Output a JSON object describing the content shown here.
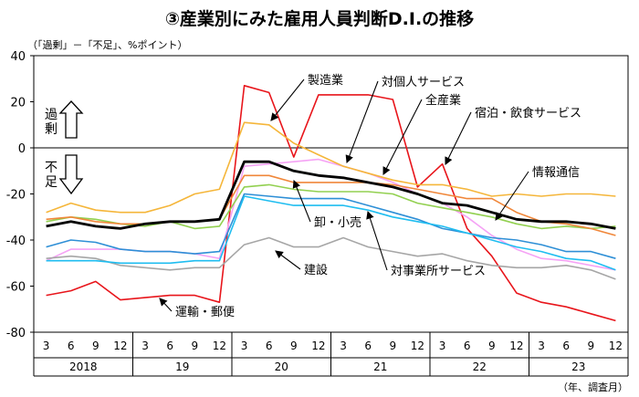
{
  "chart_data": {
    "type": "line",
    "title": "③産業別にみた雇用人員判断D.I.の推移",
    "unit_note": "（「過剰」－「不足」、%ポイント）",
    "ylim": [
      -80,
      40
    ],
    "yticks": [
      40,
      20,
      0,
      -20,
      -40,
      -60,
      -80
    ],
    "xlabel": "（年、調査月）",
    "months": [
      "3",
      "6",
      "9",
      "12",
      "3",
      "6",
      "9",
      "12",
      "3",
      "6",
      "9",
      "12",
      "3",
      "6",
      "9",
      "12",
      "3",
      "6",
      "9",
      "12",
      "3",
      "6",
      "9",
      "12"
    ],
    "years": [
      "2018",
      "19",
      "20",
      "21",
      "22",
      "23"
    ],
    "excess_label": "過剰",
    "shortage_label": "不足",
    "series": [
      {
        "name": "運輸・郵便",
        "color": "#e8151b",
        "width": 1.6,
        "values": [
          -64,
          -62,
          -58,
          -66,
          -65,
          -64,
          -64,
          -67,
          27,
          24,
          -4,
          23,
          23,
          23,
          21,
          -17,
          -7,
          -35,
          -47,
          -63,
          -67,
          -69,
          -72,
          -75
        ]
      },
      {
        "name": "対個人サービス",
        "color": "#f5a3f5",
        "width": 1.6,
        "values": [
          -49,
          -44,
          -44,
          -44,
          -45,
          -45,
          -46,
          -48,
          -8,
          -7,
          -6,
          -5,
          -8,
          -11,
          -15,
          -20,
          -24,
          -30,
          -38,
          -44,
          -48,
          -49,
          -51,
          -53
        ]
      },
      {
        "name": "建設",
        "color": "#a6a6a6",
        "width": 1.6,
        "values": [
          -48,
          -47,
          -48,
          -51,
          -52,
          -53,
          -52,
          -52,
          -42,
          -39,
          -43,
          -43,
          -39,
          -43,
          -45,
          -47,
          -46,
          -49,
          -51,
          -52,
          -52,
          -51,
          -53,
          -57
        ]
      },
      {
        "name": "対事業所サービス",
        "color": "#2e8fd6",
        "width": 1.6,
        "values": [
          -43,
          -40,
          -41,
          -44,
          -45,
          -45,
          -46,
          -45,
          -20,
          -21,
          -22,
          -22,
          -22,
          -25,
          -28,
          -31,
          -35,
          -37,
          -39,
          -40,
          -42,
          -45,
          -45,
          -48
        ]
      },
      {
        "name": "卸・小売",
        "color": "#1fbdf0",
        "width": 1.6,
        "values": [
          -49,
          -49,
          -49,
          -50,
          -50,
          -50,
          -49,
          -49,
          -21,
          -23,
          -25,
          -25,
          -25,
          -27,
          -30,
          -32,
          -34,
          -37,
          -40,
          -43,
          -45,
          -48,
          -49,
          -53
        ]
      },
      {
        "name": "製造業",
        "color": "#f5b63a",
        "width": 1.6,
        "values": [
          -28,
          -24,
          -27,
          -28,
          -28,
          -25,
          -20,
          -18,
          11,
          10,
          2,
          -3,
          -8,
          -11,
          -14,
          -16,
          -16,
          -18,
          -21,
          -20,
          -21,
          -20,
          -20,
          -21
        ]
      },
      {
        "name": "情報通信",
        "color": "#92d050",
        "width": 1.6,
        "values": [
          -32,
          -30,
          -31,
          -33,
          -34,
          -32,
          -35,
          -34,
          -17,
          -16,
          -18,
          -19,
          -19,
          -19,
          -20,
          -24,
          -26,
          -28,
          -30,
          -33,
          -35,
          -34,
          -35,
          -34
        ]
      },
      {
        "name": "宿泊・飲食サービス",
        "color": "#f0873a",
        "width": 1.6,
        "values": [
          -31,
          -30,
          -32,
          -33,
          -33,
          -32,
          -32,
          -31,
          -12,
          -12,
          -15,
          -15,
          -15,
          -15,
          -16,
          -18,
          -20,
          -22,
          -22,
          -28,
          -32,
          -33,
          -35,
          -38
        ]
      },
      {
        "name": "全産業",
        "color": "#000000",
        "width": 2.8,
        "values": [
          -34,
          -32,
          -34,
          -35,
          -33,
          -32,
          -32,
          -31,
          -6,
          -6,
          -10,
          -12,
          -13,
          -15,
          -17,
          -20,
          -24,
          -25,
          -28,
          -31,
          -32,
          -32,
          -33,
          -35
        ]
      }
    ],
    "annotations": [
      {
        "text": "製造業",
        "series": "製造業"
      },
      {
        "text": "対個人サービス",
        "series": "対個人サービス"
      },
      {
        "text": "全産業",
        "series": "全産業"
      },
      {
        "text": "宿泊・飲食サービス",
        "series": "宿泊・飲食サービス"
      },
      {
        "text": "情報通信",
        "series": "情報通信"
      },
      {
        "text": "卸・小売",
        "series": "卸・小売"
      },
      {
        "text": "建設",
        "series": "建設"
      },
      {
        "text": "対事業所サービス",
        "series": "対事業所サービス"
      },
      {
        "text": "運輸・郵便",
        "series": "運輸・郵便"
      }
    ]
  }
}
